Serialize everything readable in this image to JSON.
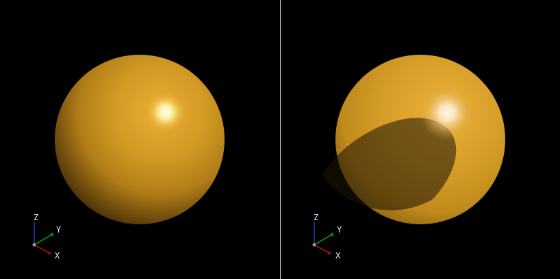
{
  "viewports": [
    {
      "name": "left",
      "sphere_color": "#d49a22",
      "highlight_color": "#ffffe0",
      "axes": {
        "x_label": "X",
        "y_label": "Y",
        "z_label": "Z"
      }
    },
    {
      "name": "right",
      "sphere_color": "#d49a22",
      "highlight_color": "#fff3e6",
      "axes": {
        "x_label": "X",
        "y_label": "Y",
        "z_label": "Z"
      }
    }
  ],
  "colors": {
    "background": "#000000",
    "divider": "#cfcfcf",
    "x_axis": "#8b0f0f",
    "y_axis": "#0f7a1e",
    "z_axis": "#1a2a9c"
  }
}
